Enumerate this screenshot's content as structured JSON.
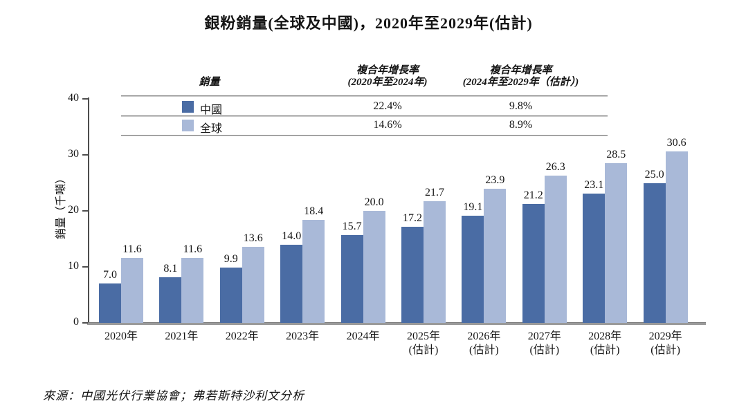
{
  "title": "銀粉銷量(全球及中國)，2020年至2029年(估計)",
  "legend_table": {
    "col1_header": "銷量",
    "col2_header_line1": "複合年增長率",
    "col2_header_line2": "(2020年至2024年)",
    "col3_header_line1": "複合年增長率",
    "col3_header_line2": "(2024年至2029年（估計）)",
    "rows": [
      {
        "label": "中國",
        "cagr_2020_2024": "22.4%",
        "cagr_2024_2029": "9.8%",
        "color": "#4a6ca4"
      },
      {
        "label": "全球",
        "cagr_2020_2024": "14.6%",
        "cagr_2024_2029": "8.9%",
        "color": "#a9b9d8"
      }
    ]
  },
  "chart_data": {
    "type": "bar",
    "title": "銀粉銷量(全球及中國)，2020年至2029年(估計)",
    "categories": [
      [
        "2020年"
      ],
      [
        "2021年"
      ],
      [
        "2022年"
      ],
      [
        "2023年"
      ],
      [
        "2024年"
      ],
      [
        "2025年",
        "(估計)"
      ],
      [
        "2026年",
        "(估計)"
      ],
      [
        "2027年",
        "(估計)"
      ],
      [
        "2028年",
        "(估計)"
      ],
      [
        "2029年",
        "(估計)"
      ]
    ],
    "series": [
      {
        "name": "中國",
        "color": "#4a6ca4",
        "values": [
          7.0,
          8.1,
          9.9,
          14.0,
          15.7,
          17.2,
          19.1,
          21.2,
          23.1,
          25.0
        ]
      },
      {
        "name": "全球",
        "color": "#a9b9d8",
        "values": [
          11.6,
          11.6,
          13.6,
          18.4,
          20.0,
          21.7,
          23.9,
          26.3,
          28.5,
          30.6
        ]
      }
    ],
    "xlabel": "",
    "ylabel": "銷量（千噸）",
    "ylim": [
      0,
      40
    ],
    "yticks": [
      0,
      10,
      20,
      30,
      40
    ],
    "grid": false,
    "legend_position": "top-table",
    "value_labels": true
  },
  "source": "來源：中國光伏行業協會；弗若斯特沙利文分析"
}
